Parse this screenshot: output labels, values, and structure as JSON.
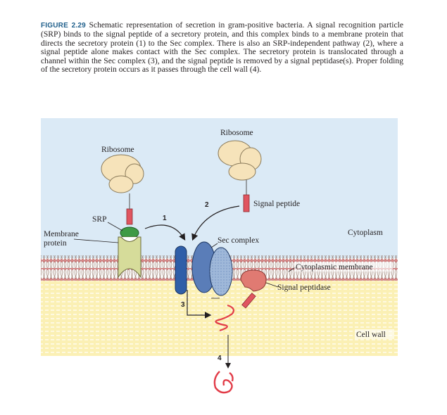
{
  "caption": {
    "figure_label": "FIGURE 2.29",
    "text": "Schematic representation of secretion in gram-positive bacteria. A signal recognition particle (SRP) binds to the signal peptide of a secretory protein, and this complex binds to a membrane protein that directs the secretory protein (1) to the Sec complex. There is also an SRP-independent pathway (2), where a signal peptide alone makes contact with the Sec complex. The secretory protein is translocated through a channel within the Sec complex (3), and the signal peptide is removed by a signal peptidase(s). Proper folding of the secretory protein occurs as it passes through the cell wall (4)."
  },
  "figure": {
    "labels": {
      "ribosome_left": "Ribosome",
      "ribosome_right": "Ribosome",
      "signal_peptide": "Signal peptide",
      "srp": "SRP",
      "membrane_protein_line1": "Membrane",
      "membrane_protein_line2": "protein",
      "sec_complex": "Sec complex",
      "cytoplasm": "Cytoplasm",
      "cytoplasmic_membrane": "Cytoplasmic membrane",
      "signal_peptidase": "Signal peptidase",
      "cell_wall": "Cell wall"
    },
    "steps": {
      "step1": "1",
      "step2": "2",
      "step3": "3",
      "step4": "4"
    },
    "colors": {
      "cytoplasm_bg": "#dbeaf6",
      "cell_wall_bg": "#fbf0b4",
      "membrane_head": "#d98686",
      "ribosome": "#f6e3ba",
      "signal_peptide": "#e05560",
      "srp": "#3e9a45",
      "membrane_protein": "#d6dc9a",
      "sec_dark": "#2f5ea8",
      "sec_mid": "#5a7db8",
      "sec_light": "#9fb8d9",
      "peptidase": "#e07a72",
      "secretory_chain": "#e23c48"
    }
  }
}
